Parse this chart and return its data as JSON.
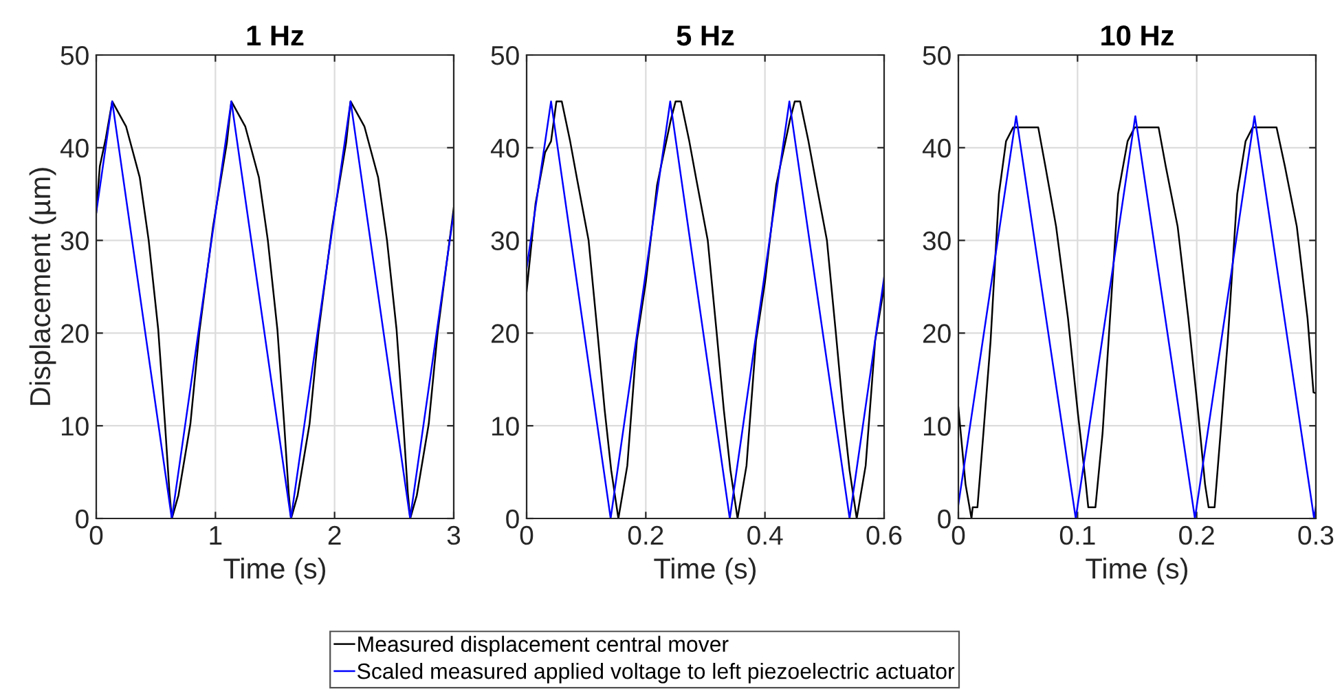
{
  "chart_data": [
    {
      "type": "line",
      "title": "1 Hz",
      "xlabel": "Time (s)",
      "ylabel": "Displacement (µm)",
      "xlim": [
        0,
        3
      ],
      "xticks": [
        0,
        1,
        2,
        3
      ],
      "ylim": [
        0,
        50
      ],
      "yticks": [
        0,
        10,
        20,
        30,
        40,
        50
      ],
      "grid": true,
      "series": [
        {
          "color": "#000000",
          "x": [
            0,
            0.03,
            0.08,
            0.134,
            0.25,
            0.365,
            0.44,
            0.52,
            0.577,
            0.615,
            0.635,
            0.69,
            0.79,
            0.865,
            0.98,
            1.096,
            1.134,
            1.25,
            1.365,
            1.44,
            1.52,
            1.577,
            1.615,
            1.635,
            1.69,
            1.79,
            1.865,
            1.98,
            2.096,
            2.134,
            2.25,
            2.365,
            2.44,
            2.52,
            2.577,
            2.615,
            2.635,
            2.69,
            2.79,
            2.865,
            2.98,
            3.0
          ],
          "values": [
            33,
            38,
            41,
            45,
            42.3,
            36.8,
            30,
            20.4,
            10.2,
            2.7,
            0,
            2.5,
            10.2,
            20.1,
            31.5,
            40.5,
            45,
            42.3,
            36.8,
            30,
            20.4,
            10.2,
            2.7,
            0,
            2.5,
            10.2,
            20.1,
            31.5,
            40.5,
            45,
            42.3,
            36.8,
            30,
            20.4,
            10.2,
            2.7,
            0,
            2.5,
            10.2,
            20.1,
            31.5,
            33.5
          ]
        },
        {
          "color": "#0000ff",
          "x": [
            0,
            0.134,
            0.634,
            1.134,
            1.634,
            2.134,
            2.634,
            3.0
          ],
          "values": [
            33,
            45,
            0,
            45,
            0,
            45,
            0,
            33
          ]
        }
      ]
    },
    {
      "type": "line",
      "title": "5 Hz",
      "xlabel": "Time (s)",
      "xlim": [
        0,
        0.6
      ],
      "xticks": [
        0,
        0.2,
        0.4,
        0.6
      ],
      "ylim": [
        0,
        50
      ],
      "yticks": [
        0,
        10,
        20,
        30,
        40,
        50
      ],
      "grid": true,
      "legend": "bottom",
      "series": [
        {
          "name": "Measured displacement central mover",
          "color": "#000000",
          "x": [
            0,
            0.015,
            0.031,
            0.041,
            0.05,
            0.059,
            0.073,
            0.085,
            0.104,
            0.119,
            0.131,
            0.142,
            0.154,
            0.169,
            0.185,
            0.2,
            0.219,
            0.242,
            0.25,
            0.259,
            0.273,
            0.285,
            0.304,
            0.319,
            0.331,
            0.342,
            0.354,
            0.369,
            0.385,
            0.4,
            0.419,
            0.442,
            0.45,
            0.459,
            0.473,
            0.485,
            0.504,
            0.519,
            0.531,
            0.542,
            0.554,
            0.569,
            0.585,
            0.6
          ],
          "values": [
            24.5,
            34,
            39.5,
            40.7,
            45,
            45,
            40.7,
            36.5,
            30,
            20,
            11.7,
            5.2,
            0,
            5.7,
            19.2,
            25.5,
            36,
            43,
            45,
            45,
            40.7,
            36.5,
            30,
            20,
            11.7,
            5.2,
            0,
            5.7,
            19.2,
            25.5,
            36,
            43,
            45,
            45,
            40.7,
            36.5,
            30,
            20,
            11.7,
            5.2,
            0,
            5.7,
            19.2,
            25
          ]
        },
        {
          "name": "Scaled measured applied voltage to left piezoelectric actuator",
          "color": "#0000ff",
          "x": [
            0,
            0.041,
            0.141,
            0.241,
            0.341,
            0.441,
            0.542,
            0.6
          ],
          "values": [
            27,
            45,
            0,
            45,
            0,
            45,
            0,
            26
          ]
        }
      ]
    },
    {
      "type": "line",
      "title": "10 Hz",
      "xlabel": "Time (s)",
      "xlim": [
        0,
        0.3
      ],
      "xticks": [
        0,
        0.1,
        0.2,
        0.3
      ],
      "ylim": [
        0,
        50
      ],
      "yticks": [
        0,
        10,
        20,
        30,
        40,
        50
      ],
      "grid": true,
      "series": [
        {
          "color": "#000000",
          "x": [
            0,
            0.002,
            0.006,
            0.011,
            0.012,
            0.016,
            0.021,
            0.027,
            0.034,
            0.04,
            0.046,
            0.067,
            0.073,
            0.082,
            0.092,
            0.1,
            0.107,
            0.109,
            0.115,
            0.121,
            0.126,
            0.134,
            0.142,
            0.148,
            0.168,
            0.174,
            0.184,
            0.193,
            0.201,
            0.207,
            0.21,
            0.215,
            0.22,
            0.226,
            0.234,
            0.241,
            0.247,
            0.267,
            0.274,
            0.284,
            0.293,
            0.298,
            0.3
          ],
          "values": [
            12,
            9.2,
            3.7,
            0,
            1.2,
            1.2,
            9.2,
            19.1,
            35,
            40.7,
            42.2,
            42.2,
            38,
            31.5,
            21.6,
            11.7,
            3.7,
            1.2,
            1.2,
            9.2,
            19.1,
            35,
            40.7,
            42.2,
            42.2,
            38,
            31.5,
            21.6,
            11.7,
            3.7,
            1.2,
            1.2,
            9.2,
            19.1,
            35,
            40.7,
            42.2,
            42.2,
            38,
            31.5,
            21.6,
            13.6,
            13.5
          ]
        },
        {
          "color": "#0000ff",
          "x": [
            0,
            0.0485,
            0.0985,
            0.1485,
            0.1985,
            0.2485,
            0.2985,
            0.3
          ],
          "values": [
            1.5,
            43.4,
            0,
            43.4,
            0,
            43.4,
            0,
            1.3
          ]
        }
      ]
    }
  ]
}
